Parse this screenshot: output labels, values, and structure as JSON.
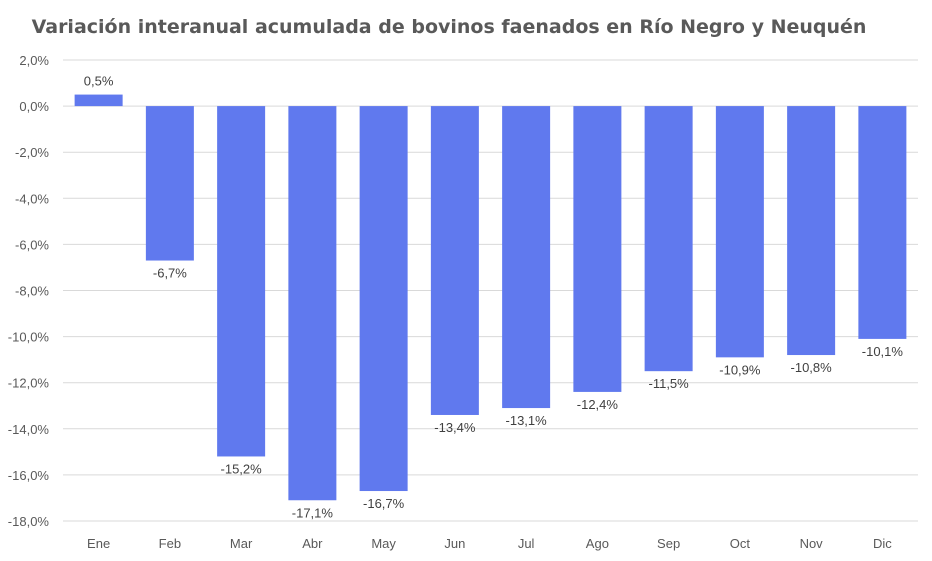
{
  "chart_data": {
    "type": "bar",
    "title": "Variación interanual acumulada de bovinos faenados en Río Negro y Neuquén",
    "xlabel": "",
    "ylabel": "",
    "categories": [
      "Ene",
      "Feb",
      "Mar",
      "Abr",
      "May",
      "Jun",
      "Jul",
      "Ago",
      "Sep",
      "Oct",
      "Nov",
      "Dic"
    ],
    "values": [
      0.5,
      -6.7,
      -15.2,
      -17.1,
      -16.7,
      -13.4,
      -13.1,
      -12.4,
      -11.5,
      -10.9,
      -10.8,
      -10.1
    ],
    "data_labels": [
      "0,5%",
      "-6,7%",
      "-15,2%",
      "-17,1%",
      "-16,7%",
      "-13,4%",
      "-13,1%",
      "-12,4%",
      "-11,5%",
      "-10,9%",
      "-10,8%",
      "-10,1%"
    ],
    "ylim": [
      -18,
      2
    ],
    "yticks": [
      2,
      0,
      -2,
      -4,
      -6,
      -8,
      -10,
      -12,
      -14,
      -16,
      -18
    ],
    "ytick_labels": [
      "2,0%",
      "0,0%",
      "-2,0%",
      "-4,0%",
      "-6,0%",
      "-8,0%",
      "-10,0%",
      "-12,0%",
      "-14,0%",
      "-16,0%",
      "-18,0%"
    ],
    "grid": true,
    "legend": "none",
    "colors": {
      "bar": "#6079EE",
      "grid": "#D9D9D9",
      "text": "#595959"
    }
  }
}
